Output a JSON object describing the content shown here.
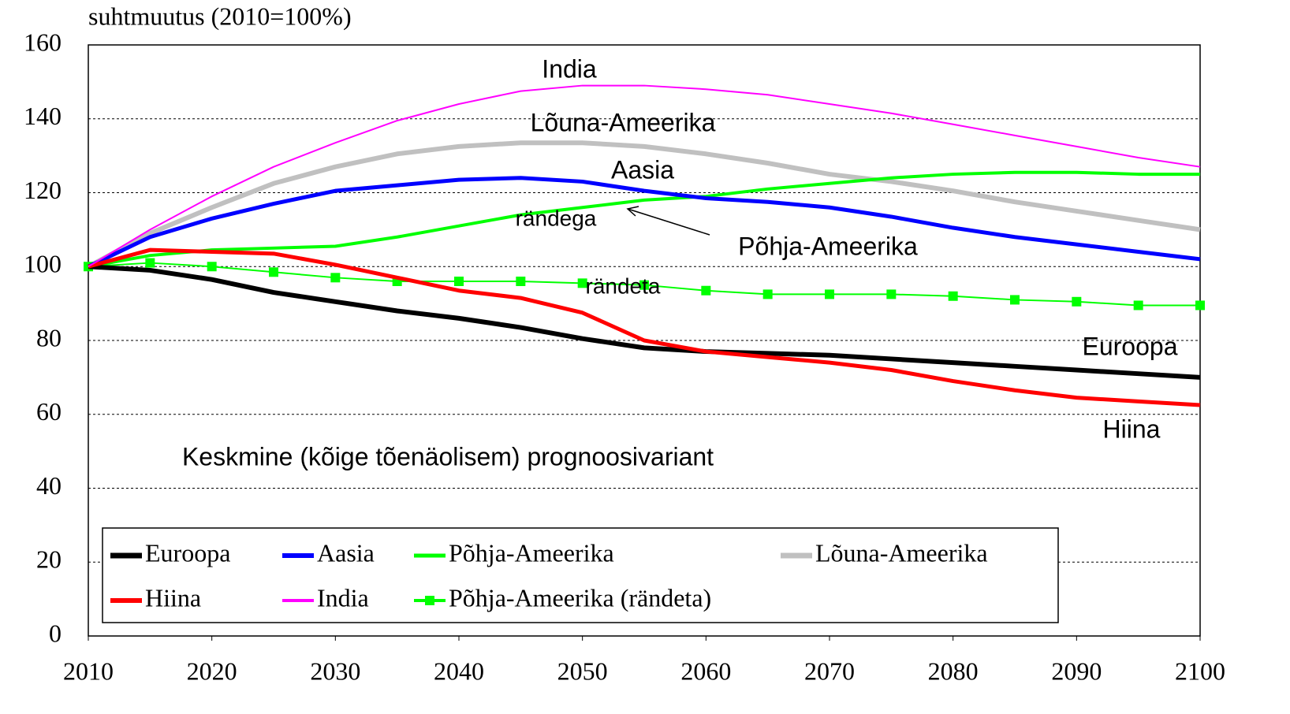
{
  "chart_data": {
    "type": "line",
    "y_axis_label": "suhtmuutus (2010=100%)",
    "x": [
      2010,
      2015,
      2020,
      2025,
      2030,
      2035,
      2040,
      2045,
      2050,
      2055,
      2060,
      2065,
      2070,
      2075,
      2080,
      2085,
      2090,
      2095,
      2100
    ],
    "xlim": [
      2010,
      2100
    ],
    "xticks": [
      2010,
      2020,
      2030,
      2040,
      2050,
      2060,
      2070,
      2080,
      2090,
      2100
    ],
    "ylim": [
      0,
      160
    ],
    "yticks": [
      0,
      20,
      40,
      60,
      80,
      100,
      120,
      140,
      160
    ],
    "grid": true,
    "series": [
      {
        "name": "Euroopa",
        "color": "#000000",
        "values": [
          100,
          99,
          96.5,
          93,
          90.5,
          88,
          86,
          83.5,
          80.5,
          78,
          77,
          76.5,
          76,
          75,
          74,
          73,
          72,
          71,
          70
        ]
      },
      {
        "name": "Aasia",
        "color": "#0000ff",
        "values": [
          100,
          108,
          113,
          117,
          120.5,
          122,
          123.5,
          124,
          123,
          120.5,
          118.5,
          117.5,
          116,
          113.5,
          110.5,
          108,
          106,
          104,
          102
        ]
      },
      {
        "name": "Põhja-Ameerika",
        "color": "#00ff00",
        "values": [
          100,
          103,
          104.5,
          105,
          105.5,
          108,
          111,
          114,
          116,
          118,
          119,
          121,
          122.5,
          124,
          125,
          125.5,
          125.5,
          125,
          125
        ]
      },
      {
        "name": "Lõuna-Ameerika",
        "color": "#c0c0c0",
        "values": [
          100,
          109,
          116,
          122.5,
          127,
          130.5,
          132.5,
          133.5,
          133.5,
          132.5,
          130.5,
          128,
          125,
          123,
          120.5,
          117.5,
          115,
          112.5,
          110
        ]
      },
      {
        "name": "Hiina",
        "color": "#ff0000",
        "values": [
          100,
          104.5,
          104,
          103.5,
          100.5,
          97,
          93.5,
          91.5,
          87.5,
          80,
          77,
          75.5,
          74,
          72,
          69,
          66.5,
          64.5,
          63.5,
          62.5
        ]
      },
      {
        "name": "India",
        "color": "#ff00ff",
        "values": [
          100,
          110,
          119,
          127,
          133.5,
          139.5,
          144,
          147.5,
          149,
          149,
          148,
          146.5,
          144,
          141.5,
          138.5,
          135.5,
          132.5,
          129.5,
          127
        ]
      },
      {
        "name": "Põhja-Ameerika (rändeta)",
        "color": "#00ff00",
        "marker": "square",
        "values": [
          100,
          101,
          100,
          98.5,
          97,
          96,
          96,
          96,
          95.5,
          95,
          93.5,
          92.5,
          92.5,
          92.5,
          92,
          91,
          90.5,
          89.5,
          89.5
        ]
      }
    ],
    "annotations": [
      "India",
      "Lõuna-Ameerika",
      "Aasia",
      "rändega",
      "Põhja-Ameerika",
      "rändeta",
      "Euroopa",
      "Hiina",
      "Keskmine (kõige tõenäolisem) prognoosivariant"
    ]
  }
}
